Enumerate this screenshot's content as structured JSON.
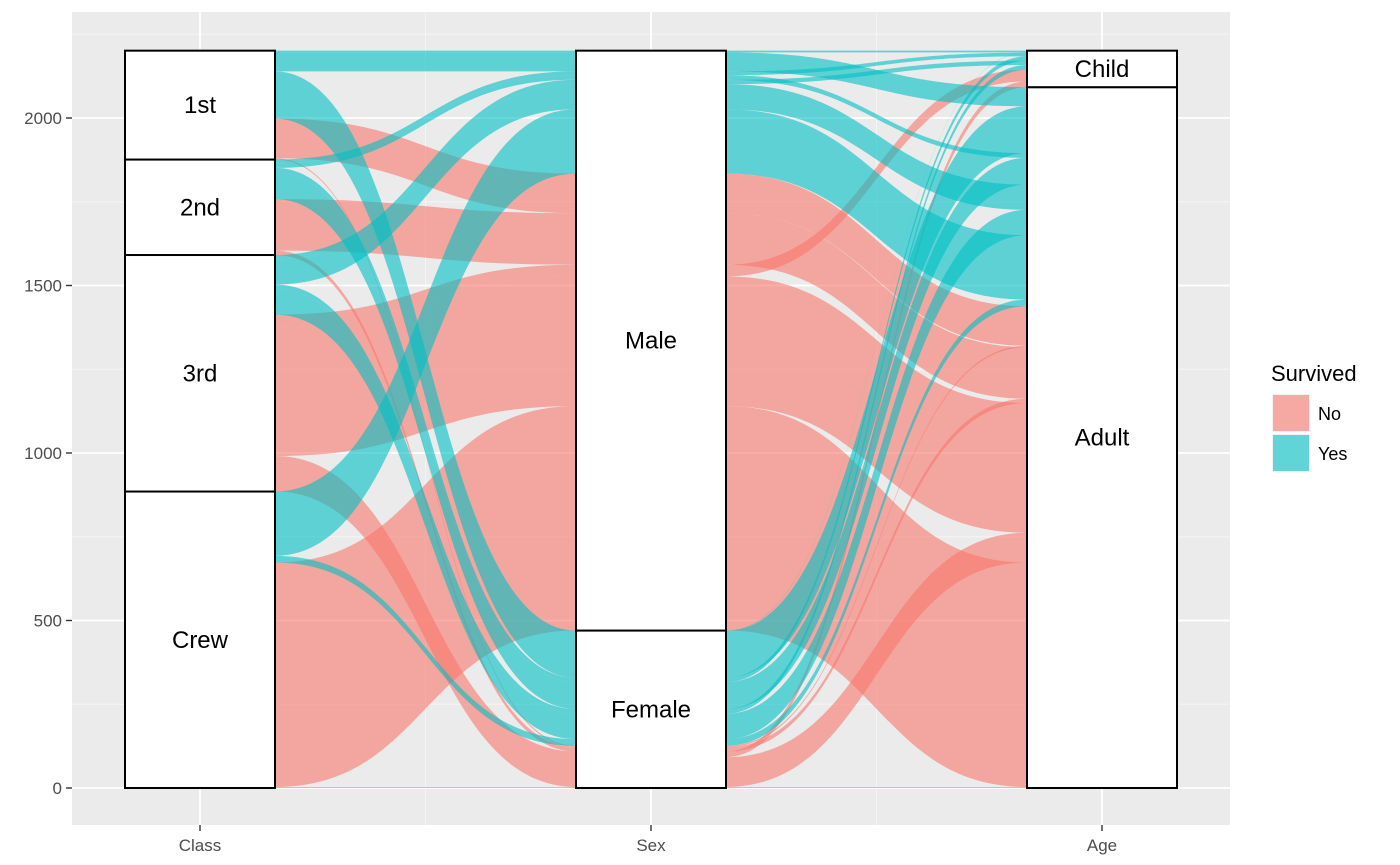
{
  "chart_data": {
    "type": "alluvial",
    "title": "",
    "xlabel": "",
    "ylabel": "",
    "ylim": [
      -110,
      2300
    ],
    "y_ticks": [
      0,
      500,
      1000,
      1500,
      2000
    ],
    "y_tick_labels": [
      "0",
      "500",
      "1000",
      "1500",
      "2000"
    ],
    "axes": [
      "Class",
      "Sex",
      "Age"
    ],
    "axis_variables": [
      "Class",
      "Sex",
      "Age"
    ],
    "strata": [
      [
        {
          "label": "Crew",
          "value": 885
        },
        {
          "label": "3rd",
          "value": 706
        },
        {
          "label": "2nd",
          "value": 285
        },
        {
          "label": "1st",
          "value": 325
        }
      ],
      [
        {
          "label": "Female",
          "value": 470
        },
        {
          "label": "Male",
          "value": 1731
        }
      ],
      [
        {
          "label": "Adult",
          "value": 2092
        },
        {
          "label": "Child",
          "value": 109
        }
      ]
    ],
    "colors": {
      "No": "#F8766D",
      "Yes": "#00BFC4"
    },
    "flow_opacity": 0.6,
    "grid": true,
    "legend": {
      "title": "Survived",
      "placement": "right",
      "entries": [
        "No",
        "Yes"
      ]
    },
    "flows": [
      {
        "path": [
          "1st",
          "Male",
          "Child"
        ],
        "survived": "No",
        "value": 0
      },
      {
        "path": [
          "2nd",
          "Male",
          "Child"
        ],
        "survived": "No",
        "value": 0
      },
      {
        "path": [
          "3rd",
          "Male",
          "Child"
        ],
        "survived": "No",
        "value": 35
      },
      {
        "path": [
          "Crew",
          "Male",
          "Child"
        ],
        "survived": "No",
        "value": 0
      },
      {
        "path": [
          "1st",
          "Female",
          "Child"
        ],
        "survived": "No",
        "value": 0
      },
      {
        "path": [
          "2nd",
          "Female",
          "Child"
        ],
        "survived": "No",
        "value": 0
      },
      {
        "path": [
          "3rd",
          "Female",
          "Child"
        ],
        "survived": "No",
        "value": 17
      },
      {
        "path": [
          "Crew",
          "Female",
          "Child"
        ],
        "survived": "No",
        "value": 0
      },
      {
        "path": [
          "1st",
          "Male",
          "Adult"
        ],
        "survived": "No",
        "value": 118
      },
      {
        "path": [
          "2nd",
          "Male",
          "Adult"
        ],
        "survived": "No",
        "value": 154
      },
      {
        "path": [
          "3rd",
          "Male",
          "Adult"
        ],
        "survived": "No",
        "value": 387
      },
      {
        "path": [
          "Crew",
          "Male",
          "Adult"
        ],
        "survived": "No",
        "value": 670
      },
      {
        "path": [
          "1st",
          "Female",
          "Adult"
        ],
        "survived": "No",
        "value": 4
      },
      {
        "path": [
          "2nd",
          "Female",
          "Adult"
        ],
        "survived": "No",
        "value": 13
      },
      {
        "path": [
          "3rd",
          "Female",
          "Adult"
        ],
        "survived": "No",
        "value": 89
      },
      {
        "path": [
          "Crew",
          "Female",
          "Adult"
        ],
        "survived": "No",
        "value": 3
      },
      {
        "path": [
          "1st",
          "Male",
          "Child"
        ],
        "survived": "Yes",
        "value": 5
      },
      {
        "path": [
          "2nd",
          "Male",
          "Child"
        ],
        "survived": "Yes",
        "value": 11
      },
      {
        "path": [
          "3rd",
          "Male",
          "Child"
        ],
        "survived": "Yes",
        "value": 13
      },
      {
        "path": [
          "Crew",
          "Male",
          "Child"
        ],
        "survived": "Yes",
        "value": 0
      },
      {
        "path": [
          "1st",
          "Female",
          "Child"
        ],
        "survived": "Yes",
        "value": 1
      },
      {
        "path": [
          "2nd",
          "Female",
          "Child"
        ],
        "survived": "Yes",
        "value": 13
      },
      {
        "path": [
          "3rd",
          "Female",
          "Child"
        ],
        "survived": "Yes",
        "value": 14
      },
      {
        "path": [
          "Crew",
          "Female",
          "Child"
        ],
        "survived": "Yes",
        "value": 0
      },
      {
        "path": [
          "1st",
          "Male",
          "Adult"
        ],
        "survived": "Yes",
        "value": 57
      },
      {
        "path": [
          "2nd",
          "Male",
          "Adult"
        ],
        "survived": "Yes",
        "value": 14
      },
      {
        "path": [
          "3rd",
          "Male",
          "Adult"
        ],
        "survived": "Yes",
        "value": 75
      },
      {
        "path": [
          "Crew",
          "Male",
          "Adult"
        ],
        "survived": "Yes",
        "value": 192
      },
      {
        "path": [
          "1st",
          "Female",
          "Adult"
        ],
        "survived": "Yes",
        "value": 140
      },
      {
        "path": [
          "2nd",
          "Female",
          "Adult"
        ],
        "survived": "Yes",
        "value": 80
      },
      {
        "path": [
          "3rd",
          "Female",
          "Adult"
        ],
        "survived": "Yes",
        "value": 76
      },
      {
        "path": [
          "Crew",
          "Female",
          "Adult"
        ],
        "survived": "Yes",
        "value": 20
      }
    ]
  }
}
